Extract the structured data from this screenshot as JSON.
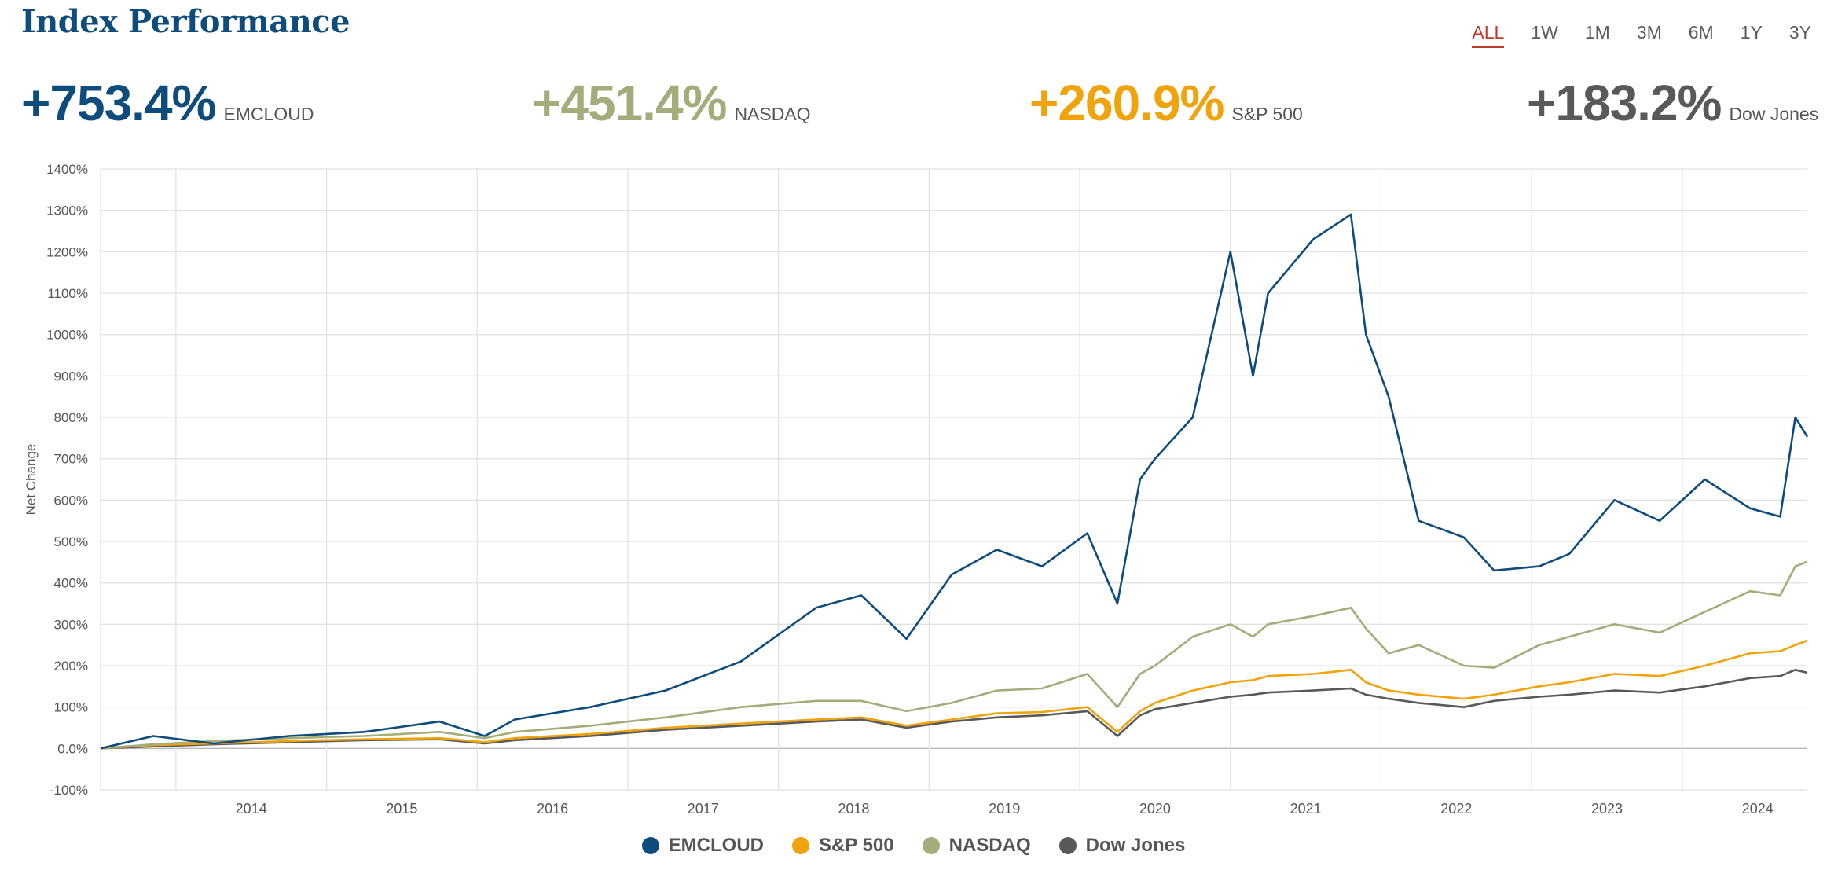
{
  "header": {
    "title": "Index Performance",
    "ranges": [
      "ALL",
      "1W",
      "1M",
      "3M",
      "6M",
      "1Y",
      "3Y"
    ],
    "active_range": "ALL"
  },
  "summary": [
    {
      "value": "+753.4%",
      "name": "EMCLOUD",
      "color": "#0e4c7d"
    },
    {
      "value": "+451.4%",
      "name": "NASDAQ",
      "color": "#a3ad7a"
    },
    {
      "value": "+260.9%",
      "name": "S&P 500",
      "color": "#f0a30a"
    },
    {
      "value": "+183.2%",
      "name": "Dow Jones",
      "color": "#58595b"
    }
  ],
  "chart_data": {
    "type": "line",
    "ylabel": "Net Change",
    "ylim": [
      -100,
      1400
    ],
    "y_ticks": [
      "-100%",
      "0.0%",
      "100%",
      "200%",
      "300%",
      "400%",
      "500%",
      "600%",
      "700%",
      "800%",
      "900%",
      "1000%",
      "1100%",
      "1200%",
      "1300%",
      "1400%"
    ],
    "xlim": [
      2013.25,
      2024.58
    ],
    "x_ticks": [
      "2014",
      "2015",
      "2016",
      "2017",
      "2018",
      "2019",
      "2020",
      "2021",
      "2022",
      "2023",
      "2024"
    ],
    "grid": true,
    "legend_position": "bottom",
    "x": [
      2013.25,
      2013.6,
      2014.0,
      2014.5,
      2015.0,
      2015.5,
      2015.8,
      2016.0,
      2016.5,
      2017.0,
      2017.5,
      2018.0,
      2018.3,
      2018.6,
      2018.9,
      2019.2,
      2019.5,
      2019.8,
      2020.0,
      2020.15,
      2020.25,
      2020.5,
      2020.75,
      2020.9,
      2021.0,
      2021.3,
      2021.55,
      2021.65,
      2021.8,
      2022.0,
      2022.3,
      2022.5,
      2022.8,
      2023.0,
      2023.3,
      2023.6,
      2023.9,
      2024.2,
      2024.4,
      2024.5,
      2024.58
    ],
    "series": [
      {
        "name": "EMCLOUD",
        "color": "#0e4c7d",
        "values": [
          0,
          30,
          12,
          30,
          40,
          65,
          30,
          70,
          100,
          140,
          210,
          340,
          370,
          265,
          420,
          480,
          440,
          520,
          350,
          650,
          700,
          800,
          1200,
          900,
          1100,
          1230,
          1290,
          1000,
          850,
          550,
          510,
          430,
          440,
          470,
          600,
          550,
          650,
          580,
          560,
          800,
          753
        ]
      },
      {
        "name": "NASDAQ",
        "color": "#a3ad7a",
        "values": [
          0,
          10,
          18,
          25,
          30,
          40,
          25,
          40,
          55,
          75,
          100,
          115,
          115,
          90,
          110,
          140,
          145,
          180,
          100,
          180,
          200,
          270,
          300,
          270,
          300,
          320,
          340,
          290,
          230,
          250,
          200,
          195,
          250,
          270,
          300,
          280,
          330,
          380,
          370,
          440,
          451
        ]
      },
      {
        "name": "S&P 500",
        "color": "#f0a30a",
        "values": [
          0,
          8,
          12,
          18,
          22,
          25,
          15,
          25,
          35,
          50,
          60,
          70,
          75,
          55,
          70,
          85,
          88,
          100,
          40,
          90,
          110,
          140,
          160,
          165,
          175,
          180,
          190,
          160,
          140,
          130,
          120,
          130,
          150,
          160,
          180,
          175,
          200,
          230,
          235,
          250,
          261
        ]
      },
      {
        "name": "Dow Jones",
        "color": "#58595b",
        "values": [
          0,
          5,
          10,
          15,
          20,
          22,
          12,
          20,
          30,
          45,
          55,
          65,
          70,
          50,
          65,
          75,
          80,
          90,
          30,
          80,
          95,
          110,
          125,
          130,
          135,
          140,
          145,
          130,
          120,
          110,
          100,
          115,
          125,
          130,
          140,
          135,
          150,
          170,
          175,
          190,
          183
        ]
      }
    ]
  }
}
